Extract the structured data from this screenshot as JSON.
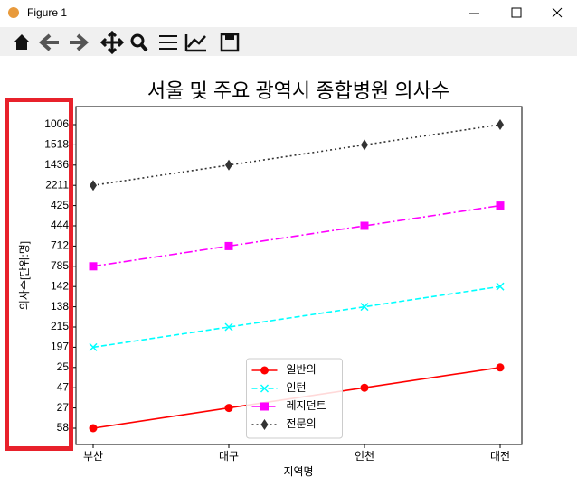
{
  "window": {
    "title": "Figure 1"
  },
  "chart_data": {
    "type": "line",
    "title": "서울 및 주요 광역시 종합병원 의사수",
    "xlabel": "지역명",
    "ylabel": "의사수[단위:명]",
    "categories": [
      "부산",
      "대구",
      "인천",
      "대전"
    ],
    "ycategories": [
      58,
      27,
      47,
      25,
      197,
      215,
      138,
      142,
      785,
      712,
      444,
      425,
      2211,
      1436,
      1518,
      1006
    ],
    "legend": "lower center",
    "series": [
      {
        "name": "일반의",
        "color": "#ff0000",
        "linestyle": "solid",
        "marker": "circle",
        "values": [
          58,
          27,
          47,
          25
        ]
      },
      {
        "name": "인턴",
        "color": "#00ffff",
        "linestyle": "dashed",
        "marker": "x",
        "values": [
          197,
          215,
          138,
          142
        ]
      },
      {
        "name": "레지던트",
        "color": "#ff00ff",
        "linestyle": "dashdot",
        "marker": "square",
        "values": [
          785,
          712,
          444,
          425
        ]
      },
      {
        "name": "전문의",
        "color": "#333333",
        "linestyle": "dotted",
        "marker": "diamond",
        "values": [
          2211,
          1436,
          1518,
          1006
        ]
      }
    ]
  }
}
